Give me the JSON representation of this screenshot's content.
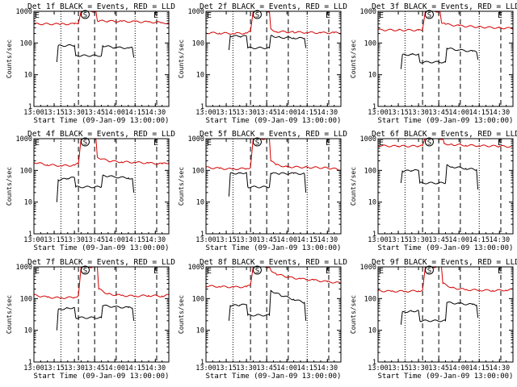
{
  "chart_data": {
    "type": "line",
    "x_range_min": [
      0,
      100
    ],
    "y_range": [
      1,
      1000
    ],
    "y_scale": "log",
    "xlabel": "Start Time (09-Jan-09 13:00:00)",
    "ylabel": "Counts/sec",
    "x_ticks": [
      {
        "v": 0,
        "label": "13:00"
      },
      {
        "v": 15,
        "label": "13:15"
      },
      {
        "v": 30,
        "label": "13:30"
      },
      {
        "v": 45,
        "label": "13:45"
      },
      {
        "v": 60,
        "label": "14:00"
      },
      {
        "v": 75,
        "label": "14:15"
      },
      {
        "v": 90,
        "label": "14:30"
      }
    ],
    "y_ticks": [
      {
        "v": 1,
        "label": "1"
      },
      {
        "v": 10,
        "label": "10"
      },
      {
        "v": 100,
        "label": "100"
      },
      {
        "v": 1000,
        "label": "1000"
      }
    ],
    "series_colors": {
      "events": "#000000",
      "lld": "#d40000"
    },
    "marker_labels": {
      "eclipse_start": "E",
      "saa": "S"
    },
    "panels": [
      {
        "title": "Det 1f BLACK = Events, RED = LLD",
        "dotted": [
          20,
          75
        ],
        "dashed": [
          33,
          45,
          61,
          91
        ],
        "e_markers": [
          0,
          88
        ],
        "s_marker": 38,
        "lld": [
          [
            0,
            400
          ],
          [
            20,
            395
          ],
          [
            30,
            400
          ],
          [
            33,
            420
          ],
          [
            35,
            1000
          ],
          [
            46,
            1000
          ],
          [
            47,
            500
          ],
          [
            55,
            490
          ],
          [
            65,
            480
          ],
          [
            75,
            470
          ],
          [
            85,
            460
          ],
          [
            95,
            440
          ],
          [
            100,
            420
          ]
        ],
        "events": [
          [
            17,
            25
          ],
          [
            18,
            82
          ],
          [
            30,
            84
          ],
          [
            31,
            40
          ],
          [
            50,
            40
          ],
          [
            51,
            82
          ],
          [
            60,
            72
          ],
          [
            70,
            70
          ],
          [
            73,
            70
          ],
          [
            74,
            35
          ]
        ]
      },
      {
        "title": "Det 2f BLACK = Events, RED = LLD",
        "dotted": [
          20,
          75
        ],
        "dashed": [
          33,
          45,
          61,
          91
        ],
        "e_markers": [
          0,
          88
        ],
        "s_marker": 38,
        "lld": [
          [
            0,
            210
          ],
          [
            10,
            205
          ],
          [
            20,
            200
          ],
          [
            30,
            205
          ],
          [
            33,
            230
          ],
          [
            35,
            1000
          ],
          [
            47,
            1000
          ],
          [
            48,
            280
          ],
          [
            52,
            230
          ],
          [
            65,
            220
          ],
          [
            75,
            215
          ],
          [
            85,
            210
          ],
          [
            95,
            210
          ],
          [
            100,
            205
          ]
        ],
        "events": [
          [
            17,
            60
          ],
          [
            18,
            170
          ],
          [
            25,
            160
          ],
          [
            30,
            165
          ],
          [
            31,
            70
          ],
          [
            47,
            70
          ],
          [
            48,
            170
          ],
          [
            55,
            150
          ],
          [
            65,
            145
          ],
          [
            73,
            140
          ],
          [
            74,
            70
          ]
        ]
      },
      {
        "title": "Det 3f BLACK = Events, RED = LLD",
        "dotted": [
          20,
          75
        ],
        "dashed": [
          33,
          45,
          61,
          91
        ],
        "e_markers": [
          0,
          88
        ],
        "s_marker": 38,
        "lld": [
          [
            0,
            260
          ],
          [
            15,
            255
          ],
          [
            30,
            255
          ],
          [
            33,
            265
          ],
          [
            35,
            1000
          ],
          [
            46,
            1000
          ],
          [
            47,
            440
          ],
          [
            50,
            390
          ],
          [
            60,
            350
          ],
          [
            75,
            320
          ],
          [
            90,
            300
          ],
          [
            100,
            290
          ]
        ],
        "events": [
          [
            17,
            15
          ],
          [
            18,
            42
          ],
          [
            25,
            44
          ],
          [
            30,
            45
          ],
          [
            31,
            25
          ],
          [
            50,
            25
          ],
          [
            51,
            68
          ],
          [
            60,
            60
          ],
          [
            70,
            55
          ],
          [
            73,
            52
          ],
          [
            74,
            30
          ]
        ]
      },
      {
        "title": "Det 4f BLACK = Events, RED = LLD",
        "dotted": [
          20,
          75
        ],
        "dashed": [
          33,
          45,
          61,
          91
        ],
        "e_markers": [
          0,
          88
        ],
        "s_marker": 38,
        "lld": [
          [
            0,
            180
          ],
          [
            10,
            150
          ],
          [
            20,
            140
          ],
          [
            30,
            145
          ],
          [
            33,
            165
          ],
          [
            35,
            1000
          ],
          [
            46,
            1000
          ],
          [
            47,
            260
          ],
          [
            55,
            200
          ],
          [
            65,
            185
          ],
          [
            75,
            180
          ],
          [
            85,
            170
          ],
          [
            95,
            160
          ],
          [
            100,
            175
          ]
        ],
        "events": [
          [
            17,
            10
          ],
          [
            18,
            50
          ],
          [
            25,
            55
          ],
          [
            30,
            60
          ],
          [
            31,
            30
          ],
          [
            50,
            30
          ],
          [
            51,
            70
          ],
          [
            60,
            62
          ],
          [
            70,
            58
          ],
          [
            73,
            55
          ],
          [
            74,
            20
          ]
        ]
      },
      {
        "title": "Det 5f BLACK = Events, RED = LLD",
        "dotted": [
          20,
          75
        ],
        "dashed": [
          33,
          45,
          61,
          91
        ],
        "e_markers": [
          0,
          88
        ],
        "s_marker": 38,
        "lld": [
          [
            0,
            125
          ],
          [
            10,
            115
          ],
          [
            20,
            110
          ],
          [
            30,
            115
          ],
          [
            33,
            125
          ],
          [
            35,
            1000
          ],
          [
            47,
            1000
          ],
          [
            48,
            200
          ],
          [
            52,
            150
          ],
          [
            60,
            130
          ],
          [
            75,
            125
          ],
          [
            90,
            120
          ],
          [
            100,
            105
          ]
        ],
        "events": [
          [
            17,
            15
          ],
          [
            18,
            80
          ],
          [
            25,
            82
          ],
          [
            30,
            85
          ],
          [
            31,
            30
          ],
          [
            47,
            30
          ],
          [
            48,
            80
          ],
          [
            55,
            80
          ],
          [
            65,
            80
          ],
          [
            73,
            78
          ],
          [
            74,
            20
          ]
        ]
      },
      {
        "title": "Det 6f BLACK = Events, RED = LLD",
        "dotted": [
          20,
          75
        ],
        "dashed": [
          33,
          45,
          61,
          91
        ],
        "e_markers": [
          0,
          88
        ],
        "s_marker": 38,
        "lld": [
          [
            0,
            600
          ],
          [
            15,
            580
          ],
          [
            30,
            585
          ],
          [
            33,
            600
          ],
          [
            35,
            1000
          ],
          [
            48,
            1000
          ],
          [
            49,
            700
          ],
          [
            55,
            650
          ],
          [
            65,
            620
          ],
          [
            75,
            600
          ],
          [
            90,
            580
          ],
          [
            100,
            560
          ]
        ],
        "events": [
          [
            17,
            40
          ],
          [
            18,
            95
          ],
          [
            25,
            98
          ],
          [
            30,
            100
          ],
          [
            31,
            40
          ],
          [
            50,
            40
          ],
          [
            51,
            150
          ],
          [
            55,
            130
          ],
          [
            65,
            115
          ],
          [
            73,
            105
          ],
          [
            74,
            25
          ]
        ]
      },
      {
        "title": "Det 7f BLACK = Events, RED = LLD",
        "dotted": [
          20,
          75
        ],
        "dashed": [
          33,
          45,
          61,
          91
        ],
        "e_markers": [
          0,
          88
        ],
        "s_marker": 38,
        "lld": [
          [
            0,
            130
          ],
          [
            10,
            110
          ],
          [
            20,
            105
          ],
          [
            30,
            110
          ],
          [
            33,
            125
          ],
          [
            35,
            1000
          ],
          [
            47,
            1000
          ],
          [
            48,
            200
          ],
          [
            55,
            140
          ],
          [
            65,
            125
          ],
          [
            75,
            120
          ],
          [
            85,
            125
          ],
          [
            95,
            120
          ],
          [
            100,
            130
          ]
        ],
        "events": [
          [
            17,
            10
          ],
          [
            18,
            45
          ],
          [
            25,
            50
          ],
          [
            30,
            52
          ],
          [
            31,
            25
          ],
          [
            50,
            25
          ],
          [
            51,
            60
          ],
          [
            60,
            55
          ],
          [
            70,
            52
          ],
          [
            73,
            50
          ],
          [
            74,
            20
          ]
        ]
      },
      {
        "title": "Det 8f BLACK = Events, RED = LLD",
        "dotted": [
          20,
          75
        ],
        "dashed": [
          33,
          45,
          61,
          91
        ],
        "e_markers": [
          0,
          88
        ],
        "s_marker": 38,
        "lld": [
          [
            0,
            250
          ],
          [
            10,
            240
          ],
          [
            20,
            230
          ],
          [
            30,
            235
          ],
          [
            33,
            260
          ],
          [
            35,
            1000
          ],
          [
            47,
            1000
          ],
          [
            48,
            800
          ],
          [
            52,
            600
          ],
          [
            60,
            480
          ],
          [
            70,
            420
          ],
          [
            80,
            380
          ],
          [
            90,
            340
          ],
          [
            100,
            310
          ]
        ],
        "events": [
          [
            17,
            20
          ],
          [
            18,
            60
          ],
          [
            25,
            62
          ],
          [
            30,
            65
          ],
          [
            31,
            30
          ],
          [
            47,
            30
          ],
          [
            48,
            180
          ],
          [
            55,
            130
          ],
          [
            65,
            95
          ],
          [
            73,
            75
          ],
          [
            74,
            20
          ]
        ]
      },
      {
        "title": "Det 9f BLACK = Events, RED = LLD",
        "dotted": [
          20,
          75
        ],
        "dashed": [
          33,
          45,
          61,
          91
        ],
        "e_markers": [
          0,
          88
        ],
        "s_marker": 38,
        "lld": [
          [
            0,
            175
          ],
          [
            10,
            170
          ],
          [
            20,
            170
          ],
          [
            30,
            175
          ],
          [
            33,
            185
          ],
          [
            35,
            1000
          ],
          [
            47,
            1000
          ],
          [
            48,
            300
          ],
          [
            55,
            220
          ],
          [
            65,
            190
          ],
          [
            75,
            185
          ],
          [
            85,
            180
          ],
          [
            95,
            185
          ],
          [
            100,
            195
          ]
        ],
        "events": [
          [
            17,
            15
          ],
          [
            18,
            38
          ],
          [
            25,
            40
          ],
          [
            30,
            42
          ],
          [
            31,
            20
          ],
          [
            50,
            20
          ],
          [
            51,
            75
          ],
          [
            60,
            70
          ],
          [
            70,
            65
          ],
          [
            73,
            62
          ],
          [
            74,
            25
          ]
        ]
      }
    ]
  }
}
